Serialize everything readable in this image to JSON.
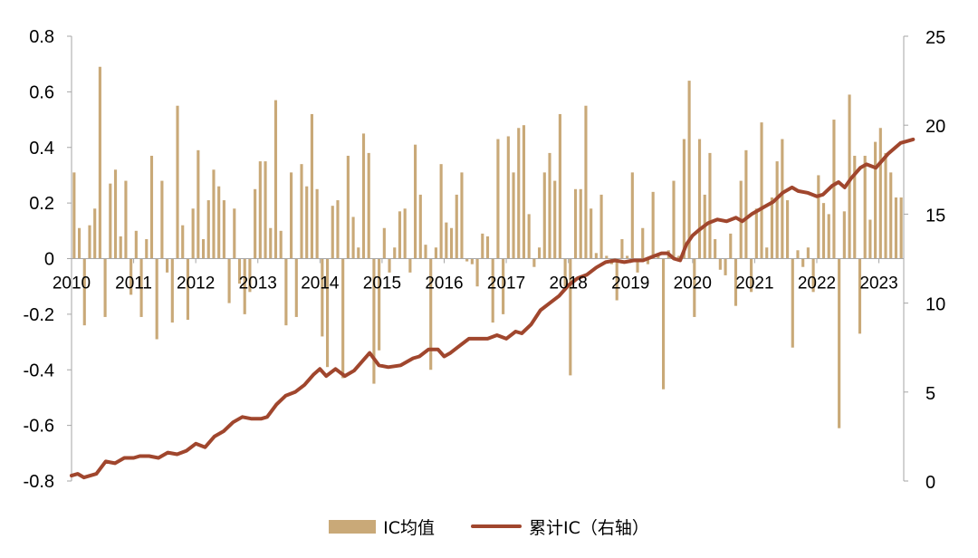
{
  "chart_data": {
    "type": "bar+line",
    "colors": {
      "bar": "#C9A978",
      "line": "#A0462D",
      "axis": "#A6A6A6"
    },
    "x_labels": [
      "2010",
      "2011",
      "2012",
      "2013",
      "2014",
      "2015",
      "2016",
      "2017",
      "2018",
      "2019",
      "2020",
      "2021",
      "2022",
      "2023"
    ],
    "y_left": {
      "ticks": [
        "0.8",
        "0.6",
        "0.4",
        "0.2",
        "0",
        "-0.2",
        "-0.4",
        "-0.6",
        "-0.8"
      ],
      "ylim": [
        -0.8,
        0.8
      ]
    },
    "y_right": {
      "ticks": [
        "25",
        "20",
        "15",
        "10",
        "5",
        "0"
      ],
      "ylim": [
        0,
        25
      ]
    },
    "legend_position": "bottom",
    "series": [
      {
        "name": "IC均值",
        "kind": "bar",
        "axis": "left",
        "values": [
          0.31,
          0.11,
          -0.24,
          0.12,
          0.18,
          0.69,
          -0.21,
          0.27,
          0.32,
          0.08,
          0.28,
          -0.13,
          0.1,
          -0.21,
          0.07,
          0.37,
          -0.29,
          0.28,
          -0.05,
          -0.23,
          0.55,
          0.12,
          -0.22,
          0.18,
          0.39,
          0.07,
          0.21,
          0.32,
          0.26,
          0.21,
          -0.16,
          0.18,
          -0.09,
          -0.2,
          -0.12,
          0.25,
          0.35,
          0.35,
          0.11,
          0.57,
          0.1,
          -0.24,
          0.31,
          -0.21,
          0.34,
          0.26,
          0.52,
          0.25,
          -0.28,
          -0.39,
          0.19,
          0.21,
          -0.43,
          0.37,
          0.15,
          0.04,
          0.45,
          0.38,
          -0.45,
          -0.33,
          0.11,
          -0.05,
          0.04,
          0.17,
          0.18,
          -0.05,
          0.41,
          0.23,
          0.05,
          -0.4,
          0.04,
          0.34,
          0.13,
          0.11,
          0.23,
          0.31,
          -0.01,
          -0.02,
          -0.1,
          0.09,
          0.08,
          -0.23,
          0.43,
          -0.2,
          0.44,
          0.31,
          0.47,
          0.48,
          0.16,
          -0.03,
          0.04,
          0.31,
          0.38,
          0.28,
          0.52,
          -0.1,
          -0.42,
          0.25,
          0.25,
          0.55,
          0.18,
          0.02,
          0.23,
          0.01,
          -0.02,
          -0.15,
          0.07,
          0.01,
          0.31,
          -0.05,
          0.11,
          -0.02,
          0.24,
          0.01,
          -0.47,
          0.03,
          0.28,
          0.01,
          0.43,
          0.64,
          -0.21,
          0.43,
          0.23,
          0.38,
          0.07,
          -0.04,
          -0.06,
          0.09,
          -0.17,
          0.28,
          0.39,
          -0.12,
          0.18,
          0.49,
          0.04,
          0.22,
          0.35,
          0.43,
          0.21,
          -0.32,
          0.03,
          -0.03,
          0.04,
          -0.12,
          0.3,
          0.2,
          0.16,
          0.5,
          -0.61,
          0.17,
          0.59,
          0.37,
          -0.27,
          0.37,
          0.14,
          0.42,
          0.47,
          0.38,
          0.31,
          0.22,
          0.22
        ]
      },
      {
        "name": "累计IC（右轴）",
        "kind": "line",
        "axis": "right",
        "points": [
          [
            2010.0,
            0.3
          ],
          [
            2010.1,
            0.4
          ],
          [
            2010.2,
            0.2
          ],
          [
            2010.4,
            0.4
          ],
          [
            2010.55,
            1.1
          ],
          [
            2010.7,
            1.0
          ],
          [
            2010.85,
            1.3
          ],
          [
            2011.0,
            1.3
          ],
          [
            2011.1,
            1.4
          ],
          [
            2011.25,
            1.4
          ],
          [
            2011.4,
            1.3
          ],
          [
            2011.55,
            1.6
          ],
          [
            2011.7,
            1.5
          ],
          [
            2011.85,
            1.7
          ],
          [
            2012.0,
            2.1
          ],
          [
            2012.15,
            1.9
          ],
          [
            2012.3,
            2.5
          ],
          [
            2012.45,
            2.8
          ],
          [
            2012.6,
            3.3
          ],
          [
            2012.75,
            3.6
          ],
          [
            2012.9,
            3.5
          ],
          [
            2013.05,
            3.5
          ],
          [
            2013.15,
            3.6
          ],
          [
            2013.3,
            4.3
          ],
          [
            2013.45,
            4.8
          ],
          [
            2013.6,
            5.0
          ],
          [
            2013.75,
            5.4
          ],
          [
            2013.9,
            6.0
          ],
          [
            2014.0,
            6.3
          ],
          [
            2014.1,
            5.9
          ],
          [
            2014.25,
            6.3
          ],
          [
            2014.4,
            5.9
          ],
          [
            2014.55,
            6.2
          ],
          [
            2014.7,
            6.8
          ],
          [
            2014.8,
            7.2
          ],
          [
            2014.95,
            6.5
          ],
          [
            2015.1,
            6.4
          ],
          [
            2015.3,
            6.5
          ],
          [
            2015.5,
            6.9
          ],
          [
            2015.6,
            7.0
          ],
          [
            2015.75,
            7.4
          ],
          [
            2015.9,
            7.4
          ],
          [
            2016.0,
            7.0
          ],
          [
            2016.1,
            7.2
          ],
          [
            2016.25,
            7.6
          ],
          [
            2016.4,
            8.0
          ],
          [
            2016.55,
            8.0
          ],
          [
            2016.7,
            8.0
          ],
          [
            2016.85,
            8.2
          ],
          [
            2017.0,
            8.0
          ],
          [
            2017.15,
            8.4
          ],
          [
            2017.25,
            8.3
          ],
          [
            2017.4,
            8.8
          ],
          [
            2017.55,
            9.6
          ],
          [
            2017.7,
            10.0
          ],
          [
            2017.85,
            10.4
          ],
          [
            2018.0,
            11.0
          ],
          [
            2018.15,
            11.4
          ],
          [
            2018.3,
            11.6
          ],
          [
            2018.45,
            12.0
          ],
          [
            2018.6,
            12.3
          ],
          [
            2018.75,
            12.4
          ],
          [
            2018.9,
            12.3
          ],
          [
            2019.05,
            12.4
          ],
          [
            2019.2,
            12.4
          ],
          [
            2019.35,
            12.6
          ],
          [
            2019.5,
            12.8
          ],
          [
            2019.6,
            12.8
          ],
          [
            2019.7,
            12.5
          ],
          [
            2019.8,
            12.4
          ],
          [
            2019.9,
            13.3
          ],
          [
            2020.0,
            13.8
          ],
          [
            2020.1,
            14.1
          ],
          [
            2020.25,
            14.5
          ],
          [
            2020.4,
            14.7
          ],
          [
            2020.55,
            14.6
          ],
          [
            2020.7,
            14.8
          ],
          [
            2020.8,
            14.6
          ],
          [
            2020.95,
            15.0
          ],
          [
            2021.05,
            15.2
          ],
          [
            2021.15,
            15.4
          ],
          [
            2021.3,
            15.7
          ],
          [
            2021.45,
            16.2
          ],
          [
            2021.6,
            16.5
          ],
          [
            2021.7,
            16.3
          ],
          [
            2021.85,
            16.2
          ],
          [
            2022.0,
            16.0
          ],
          [
            2022.1,
            16.1
          ],
          [
            2022.25,
            16.6
          ],
          [
            2022.35,
            16.8
          ],
          [
            2022.45,
            16.5
          ],
          [
            2022.55,
            17.0
          ],
          [
            2022.7,
            17.6
          ],
          [
            2022.8,
            17.8
          ],
          [
            2022.95,
            17.6
          ],
          [
            2023.05,
            18.0
          ],
          [
            2023.15,
            18.4
          ],
          [
            2023.25,
            18.7
          ],
          [
            2023.35,
            19.0
          ],
          [
            2023.45,
            19.1
          ],
          [
            2023.55,
            19.2
          ]
        ]
      }
    ]
  }
}
